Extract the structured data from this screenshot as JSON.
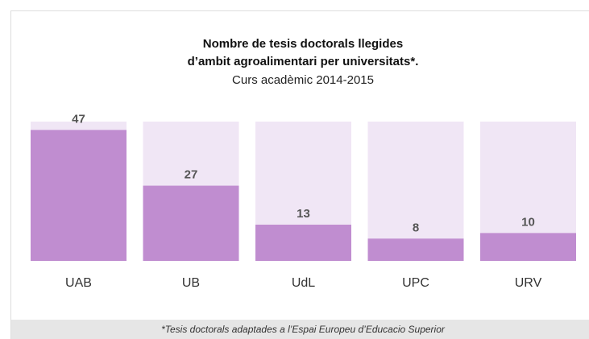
{
  "chart_data": {
    "type": "bar",
    "title": [
      "Nombre de tesis doctorals llegides",
      "d’ambit agroalimentari per universitats*."
    ],
    "subtitle": "Curs acadèmic 2014-2015",
    "categories": [
      "UAB",
      "UB",
      "UdL",
      "UPC",
      "URV"
    ],
    "values": [
      47,
      27,
      13,
      8,
      10
    ],
    "color": "#c08dd0",
    "background_color": "#f0e6f5",
    "ylim": [
      0,
      50
    ],
    "footnote": "*Tesis doctorals adaptades a l’Espai Europeu d’Educacio Superior"
  }
}
